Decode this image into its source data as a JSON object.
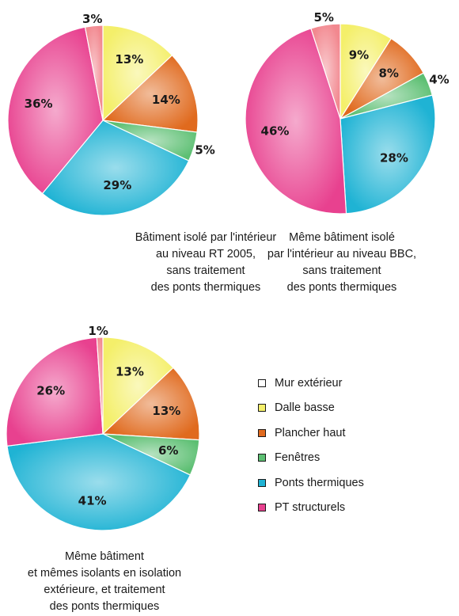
{
  "chart_data": [
    {
      "type": "pie",
      "caption_lines": [
        "Bâtiment isolé par l'intérieur",
        "au niveau RT 2005,",
        "sans traitement",
        "des ponts thermiques"
      ],
      "slices": [
        {
          "category": "Dalle basse",
          "value": 13,
          "label": "13%"
        },
        {
          "category": "Plancher haut",
          "value": 14,
          "label": "14%"
        },
        {
          "category": "Fenêtres",
          "value": 5,
          "label": "5%"
        },
        {
          "category": "Ponts thermiques",
          "value": 29,
          "label": "29%"
        },
        {
          "category": "PT structurels",
          "value": 36,
          "label": "36%"
        },
        {
          "category": "Mur extérieur",
          "value": 3,
          "label": "3%"
        }
      ]
    },
    {
      "type": "pie",
      "caption_lines": [
        "Même bâtiment isolé",
        "par l'intérieur au niveau BBC,",
        "sans traitement",
        "des ponts thermiques"
      ],
      "slices": [
        {
          "category": "Dalle basse",
          "value": 9,
          "label": "9%"
        },
        {
          "category": "Plancher haut",
          "value": 8,
          "label": "8%"
        },
        {
          "category": "Fenêtres",
          "value": 4,
          "label": "4%"
        },
        {
          "category": "Ponts thermiques",
          "value": 28,
          "label": "28%"
        },
        {
          "category": "PT structurels",
          "value": 46,
          "label": "46%"
        },
        {
          "category": "Mur extérieur",
          "value": 5,
          "label": "5%"
        }
      ]
    },
    {
      "type": "pie",
      "caption_lines": [
        "Même bâtiment",
        "et mêmes isolants en isolation",
        "extérieure, et traitement",
        "des ponts thermiques"
      ],
      "slices": [
        {
          "category": "Dalle basse",
          "value": 13,
          "label": "13%"
        },
        {
          "category": "Plancher haut",
          "value": 13,
          "label": "13%"
        },
        {
          "category": "Fenêtres",
          "value": 6,
          "label": "6%"
        },
        {
          "category": "Ponts thermiques",
          "value": 41,
          "label": "41%"
        },
        {
          "category": "PT structurels",
          "value": 26,
          "label": "26%"
        },
        {
          "category": "Mur extérieur",
          "value": 1,
          "label": "1%"
        }
      ]
    }
  ],
  "legend": [
    {
      "label": "Mur extérieur",
      "color": "#ffffff"
    },
    {
      "label": "Dalle basse",
      "color": "#f4ef6a"
    },
    {
      "label": "Plancher haut",
      "color": "#e06a1e"
    },
    {
      "label": "Fenêtres",
      "color": "#5cbf72"
    },
    {
      "label": "Ponts thermiques",
      "color": "#1fb3d4"
    },
    {
      "label": "PT structurels",
      "color": "#e8418f"
    }
  ],
  "slice_colors": {
    "Mur extérieur": "#f2888f",
    "Dalle basse": "#f4ef6a",
    "Plancher haut": "#e06a1e",
    "Fenêtres": "#5cbf72",
    "Ponts thermiques": "#1fb3d4",
    "PT structurels": "#e8418f"
  }
}
